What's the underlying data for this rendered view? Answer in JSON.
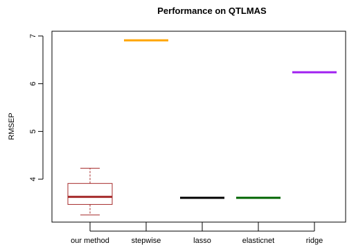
{
  "chart_data": {
    "type": "box",
    "title": "Performance on QTLMAS",
    "xlabel": "",
    "ylabel": "RMSEP",
    "ylim": [
      3.1,
      7.1
    ],
    "yticks": [
      4,
      5,
      6,
      7
    ],
    "categories": [
      "our method",
      "stepwise",
      "lasso",
      "elasticnet",
      "ridge"
    ],
    "series": [
      {
        "category": "our method",
        "color": "#a52a2a",
        "min": 3.25,
        "q1": 3.47,
        "median": 3.63,
        "q3": 3.91,
        "max": 4.23
      },
      {
        "category": "stepwise",
        "color": "#ffa500",
        "min": 6.91,
        "q1": 6.91,
        "median": 6.91,
        "q3": 6.91,
        "max": 6.91
      },
      {
        "category": "lasso",
        "color": "#000000",
        "min": 3.61,
        "q1": 3.61,
        "median": 3.61,
        "q3": 3.61,
        "max": 3.61
      },
      {
        "category": "elasticnet",
        "color": "#006400",
        "min": 3.61,
        "q1": 3.61,
        "median": 3.61,
        "q3": 3.61,
        "max": 3.61
      },
      {
        "category": "ridge",
        "color": "#a020f0",
        "min": 6.24,
        "q1": 6.24,
        "median": 6.24,
        "q3": 6.24,
        "max": 6.24
      }
    ]
  }
}
